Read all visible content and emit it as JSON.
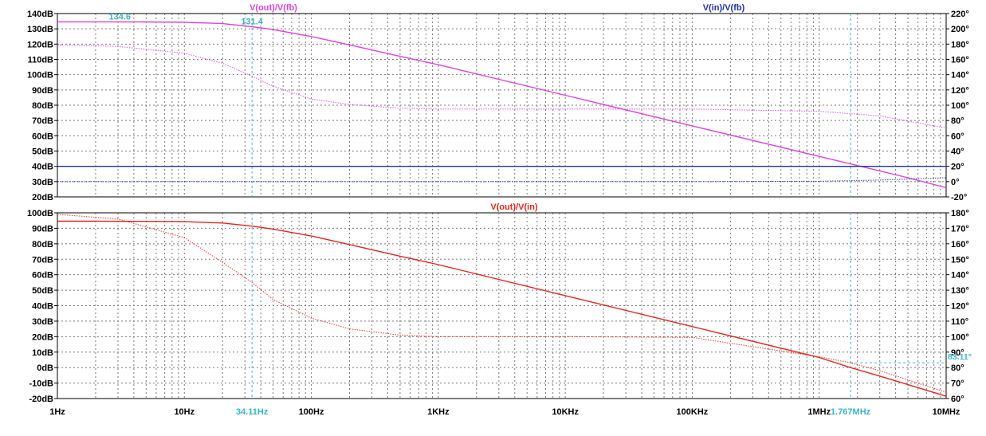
{
  "colors": {
    "background": "#ffffff",
    "frame": "#000000",
    "grid": "#7a7a7a",
    "magenta": "#e040e0",
    "blue": "#1f2fb5",
    "red": "#e8241c",
    "cursor": "#38b6c8"
  },
  "chart_data": [
    {
      "type": "line",
      "panel": "top",
      "xscale": "log",
      "xlim": [
        1,
        10000000
      ],
      "ylim": [
        20,
        140
      ],
      "y2lim": [
        -20,
        220
      ],
      "grid": true,
      "xticks": [
        {
          "v": 1,
          "label": "1Hz"
        },
        {
          "v": 10,
          "label": "10Hz"
        },
        {
          "v": 100,
          "label": "100Hz"
        },
        {
          "v": 1000,
          "label": "1KHz"
        },
        {
          "v": 10000,
          "label": "10KHz"
        },
        {
          "v": 100000,
          "label": "100KHz"
        },
        {
          "v": 1000000,
          "label": "1MHz"
        },
        {
          "v": 10000000,
          "label": "10MHz"
        }
      ],
      "yticks": [
        {
          "v": 140,
          "label": "140dB"
        },
        {
          "v": 130,
          "label": "130dB"
        },
        {
          "v": 120,
          "label": "120dB"
        },
        {
          "v": 110,
          "label": "110dB"
        },
        {
          "v": 100,
          "label": "100dB"
        },
        {
          "v": 90,
          "label": "90dB"
        },
        {
          "v": 80,
          "label": "80dB"
        },
        {
          "v": 70,
          "label": "70dB"
        },
        {
          "v": 60,
          "label": "60dB"
        },
        {
          "v": 50,
          "label": "50dB"
        },
        {
          "v": 40,
          "label": "40dB"
        },
        {
          "v": 30,
          "label": "30dB"
        },
        {
          "v": 20,
          "label": "20dB"
        }
      ],
      "y2ticks": [
        {
          "v": 220,
          "label": "220°"
        },
        {
          "v": 200,
          "label": "200°"
        },
        {
          "v": 180,
          "label": "180°"
        },
        {
          "v": 160,
          "label": "160°"
        },
        {
          "v": 140,
          "label": "140°"
        },
        {
          "v": 120,
          "label": "120°"
        },
        {
          "v": 100,
          "label": "100°"
        },
        {
          "v": 80,
          "label": "80°"
        },
        {
          "v": 60,
          "label": "60°"
        },
        {
          "v": 40,
          "label": "40°"
        },
        {
          "v": 20,
          "label": "20°"
        },
        {
          "v": 0,
          "label": "0°"
        },
        {
          "v": -20,
          "label": "-20°"
        }
      ],
      "legend": [
        {
          "text": "V(out)/V(fb)",
          "color": "#e040e0",
          "position": "left-center"
        },
        {
          "text": "V(in)/V(fb)",
          "color": "#1f2fb5",
          "position": "right"
        }
      ],
      "series": [
        {
          "name": "V(out)/V(fb)",
          "quantity": "magnitude",
          "axis": "left",
          "color": "#e040e0",
          "style": "solid",
          "x": [
            1,
            2,
            5,
            10,
            20,
            34.11,
            50,
            100,
            200,
            500,
            1000,
            10000,
            100000,
            1000000,
            3000000,
            5000000,
            10000000
          ],
          "y": [
            134.6,
            134.6,
            134.5,
            134.3,
            133.4,
            131.4,
            129.5,
            125,
            119.5,
            112,
            106.5,
            86.5,
            66.5,
            46.5,
            37,
            32.5,
            26
          ]
        },
        {
          "name": "V(out)/V(fb)",
          "quantity": "phase",
          "axis": "right",
          "color": "#e040e0",
          "style": "dotted",
          "x": [
            1,
            3,
            10,
            20,
            34.11,
            50,
            100,
            200,
            500,
            1000,
            10000,
            100000,
            1000000,
            3000000,
            10000000
          ],
          "y": [
            179,
            177,
            168,
            155,
            138,
            125,
            108,
            101,
            96,
            95,
            95,
            95,
            92,
            86,
            70
          ]
        },
        {
          "name": "V(in)/V(fb)",
          "quantity": "magnitude",
          "axis": "left",
          "color": "#1f2fb5",
          "style": "solid",
          "x": [
            1,
            10000000
          ],
          "y": [
            40,
            40
          ]
        },
        {
          "name": "V(in)/V(fb)",
          "quantity": "phase",
          "axis": "right",
          "color": "#1f2fb5",
          "style": "dotted",
          "x": [
            1,
            100000,
            1000000,
            3000000,
            10000000
          ],
          "y": [
            0,
            0,
            0.5,
            2,
            5
          ]
        }
      ],
      "cursors": {
        "x": [
          34.11,
          1767000
        ],
        "labels": [
          {
            "text": "134.6",
            "x": 3.1,
            "y": 134.6,
            "anchor": "middle"
          },
          {
            "text": "131.4",
            "x": 34.11,
            "y": 131.4,
            "anchor": "middle"
          }
        ]
      }
    },
    {
      "type": "line",
      "panel": "bottom",
      "xscale": "log",
      "xlim": [
        1,
        10000000
      ],
      "ylim": [
        -20,
        100
      ],
      "y2lim": [
        60,
        180
      ],
      "grid": true,
      "yticks": [
        {
          "v": 100,
          "label": "100dB"
        },
        {
          "v": 90,
          "label": "90dB"
        },
        {
          "v": 80,
          "label": "80dB"
        },
        {
          "v": 70,
          "label": "70dB"
        },
        {
          "v": 60,
          "label": "60dB"
        },
        {
          "v": 50,
          "label": "50dB"
        },
        {
          "v": 40,
          "label": "40dB"
        },
        {
          "v": 30,
          "label": "30dB"
        },
        {
          "v": 20,
          "label": "20dB"
        },
        {
          "v": 10,
          "label": "10dB"
        },
        {
          "v": 0,
          "label": "0dB"
        },
        {
          "v": -10,
          "label": "-10dB"
        },
        {
          "v": -20,
          "label": "-20dB"
        }
      ],
      "y2ticks": [
        {
          "v": 180,
          "label": "180°"
        },
        {
          "v": 170,
          "label": "170°"
        },
        {
          "v": 160,
          "label": "160°"
        },
        {
          "v": 150,
          "label": "150°"
        },
        {
          "v": 140,
          "label": "140°"
        },
        {
          "v": 130,
          "label": "130°"
        },
        {
          "v": 120,
          "label": "120°"
        },
        {
          "v": 110,
          "label": "110°"
        },
        {
          "v": 100,
          "label": "100°"
        },
        {
          "v": 90,
          "label": "90°"
        },
        {
          "v": 80,
          "label": "80°"
        },
        {
          "v": 70,
          "label": "70°"
        },
        {
          "v": 60,
          "label": "60°"
        }
      ],
      "legend": [
        {
          "text": "V(out)/V(in)",
          "color": "#e8241c",
          "position": "center"
        }
      ],
      "series": [
        {
          "name": "V(out)/V(in)",
          "quantity": "magnitude",
          "axis": "left",
          "color": "#e8241c",
          "style": "solid",
          "x": [
            1,
            2,
            5,
            10,
            20,
            34.11,
            50,
            100,
            200,
            500,
            1000,
            10000,
            100000,
            1000000,
            1767000,
            3000000,
            10000000
          ],
          "y": [
            94.6,
            94.6,
            94.5,
            94.3,
            93.4,
            91.4,
            89.5,
            85,
            79.5,
            72,
            66.5,
            46.5,
            26.5,
            6.5,
            0,
            -5.5,
            -18.5
          ]
        },
        {
          "name": "V(out)/V(in)",
          "quantity": "phase",
          "axis": "right",
          "color": "#e8241c",
          "style": "dotted",
          "x": [
            1,
            3,
            10,
            20,
            34.11,
            50,
            100,
            200,
            500,
            1000,
            10000,
            100000,
            1000000,
            1767000,
            3000000,
            10000000
          ],
          "y": [
            179,
            176,
            164,
            148,
            135,
            124,
            112,
            105,
            101,
            100,
            100,
            99.5,
            87,
            83.11,
            78,
            64
          ]
        }
      ],
      "cursors": {
        "x": [
          34.11,
          1767000
        ],
        "labels": [
          {
            "text": "34.11Hz",
            "x": 34.11,
            "axis": "x"
          },
          {
            "text": "1.767MHz",
            "x": 1767000,
            "axis": "x"
          },
          {
            "text": "83.11°",
            "x": 10000000,
            "y": 83.11,
            "anchor": "start"
          }
        ],
        "hline": {
          "y": 83.11,
          "from": 1767000,
          "to": 10000000
        }
      }
    }
  ]
}
